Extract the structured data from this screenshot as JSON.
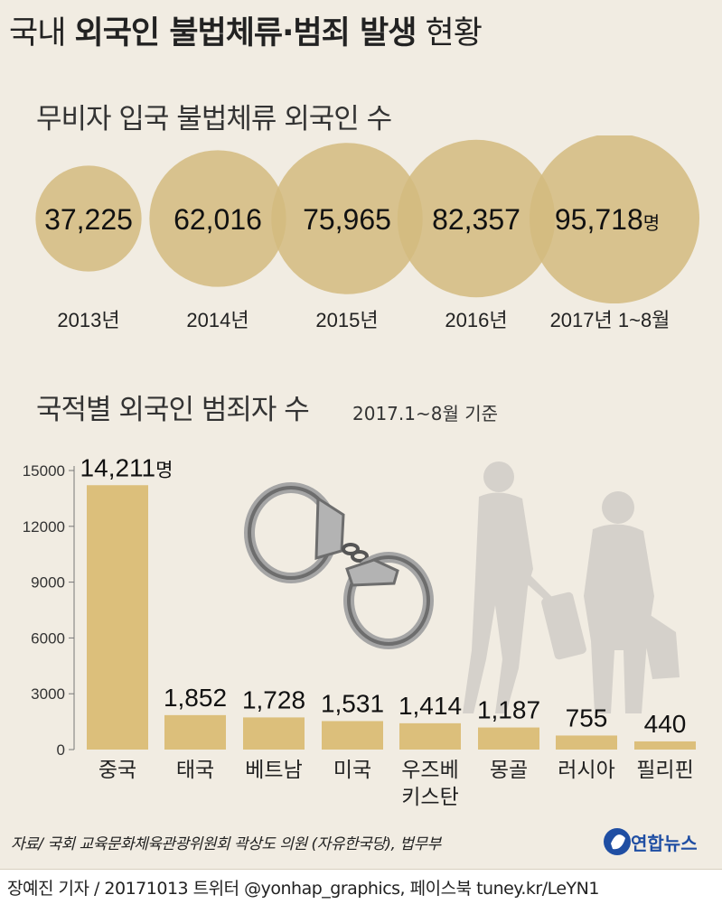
{
  "header": {
    "title_pre": "국내 ",
    "title_bold": "외국인 불법체류·범죄 발생",
    "title_post": " 현황"
  },
  "colors": {
    "background": "#f1ece2",
    "circle": "#d4bb7f",
    "circle_overlap": "#c2a766",
    "bar": "#dcbf7b",
    "logo": "#1f4ea3"
  },
  "chart_data": [
    {
      "type": "bubble",
      "title": "무비자 입국 불법체류 외국인 수",
      "categories": [
        "2013년",
        "2014년",
        "2015년",
        "2016년",
        "2017년 1~8월"
      ],
      "values": [
        37225,
        62016,
        75965,
        82357,
        95718
      ],
      "value_labels": [
        "37,225",
        "62,016",
        "75,965",
        "82,357",
        "95,718"
      ],
      "unit": "명"
    },
    {
      "type": "bar",
      "title": "국적별 외국인 범죄자 수",
      "subtitle": "2017.1~8월 기준",
      "categories": [
        "중국",
        "태국",
        "베트남",
        "미국",
        "우즈베 키스탄",
        "몽골",
        "러시아",
        "필리핀"
      ],
      "values": [
        14211,
        1852,
        1728,
        1531,
        1414,
        1187,
        755,
        440
      ],
      "value_labels": [
        "14,211",
        "1,852",
        "1,728",
        "1,531",
        "1,414",
        "1,187",
        "755",
        "440"
      ],
      "unit": "명",
      "yticks": [
        "15000",
        "12000",
        "9000",
        "6000",
        "3000",
        "0"
      ],
      "ylim": [
        0,
        15000
      ],
      "grid": false
    }
  ],
  "footer": {
    "source": "자료/ 국회 교육문화체육관광위원회 곽상도 의원 (자유한국당), 법무부",
    "credit": "장예진 기자 / 20171013 트위터 @yonhap_graphics, 페이스북 tuney.kr/LeYN1",
    "logo_text": "연합뉴스",
    "logo_icon": "yonhap-globe-icon"
  }
}
